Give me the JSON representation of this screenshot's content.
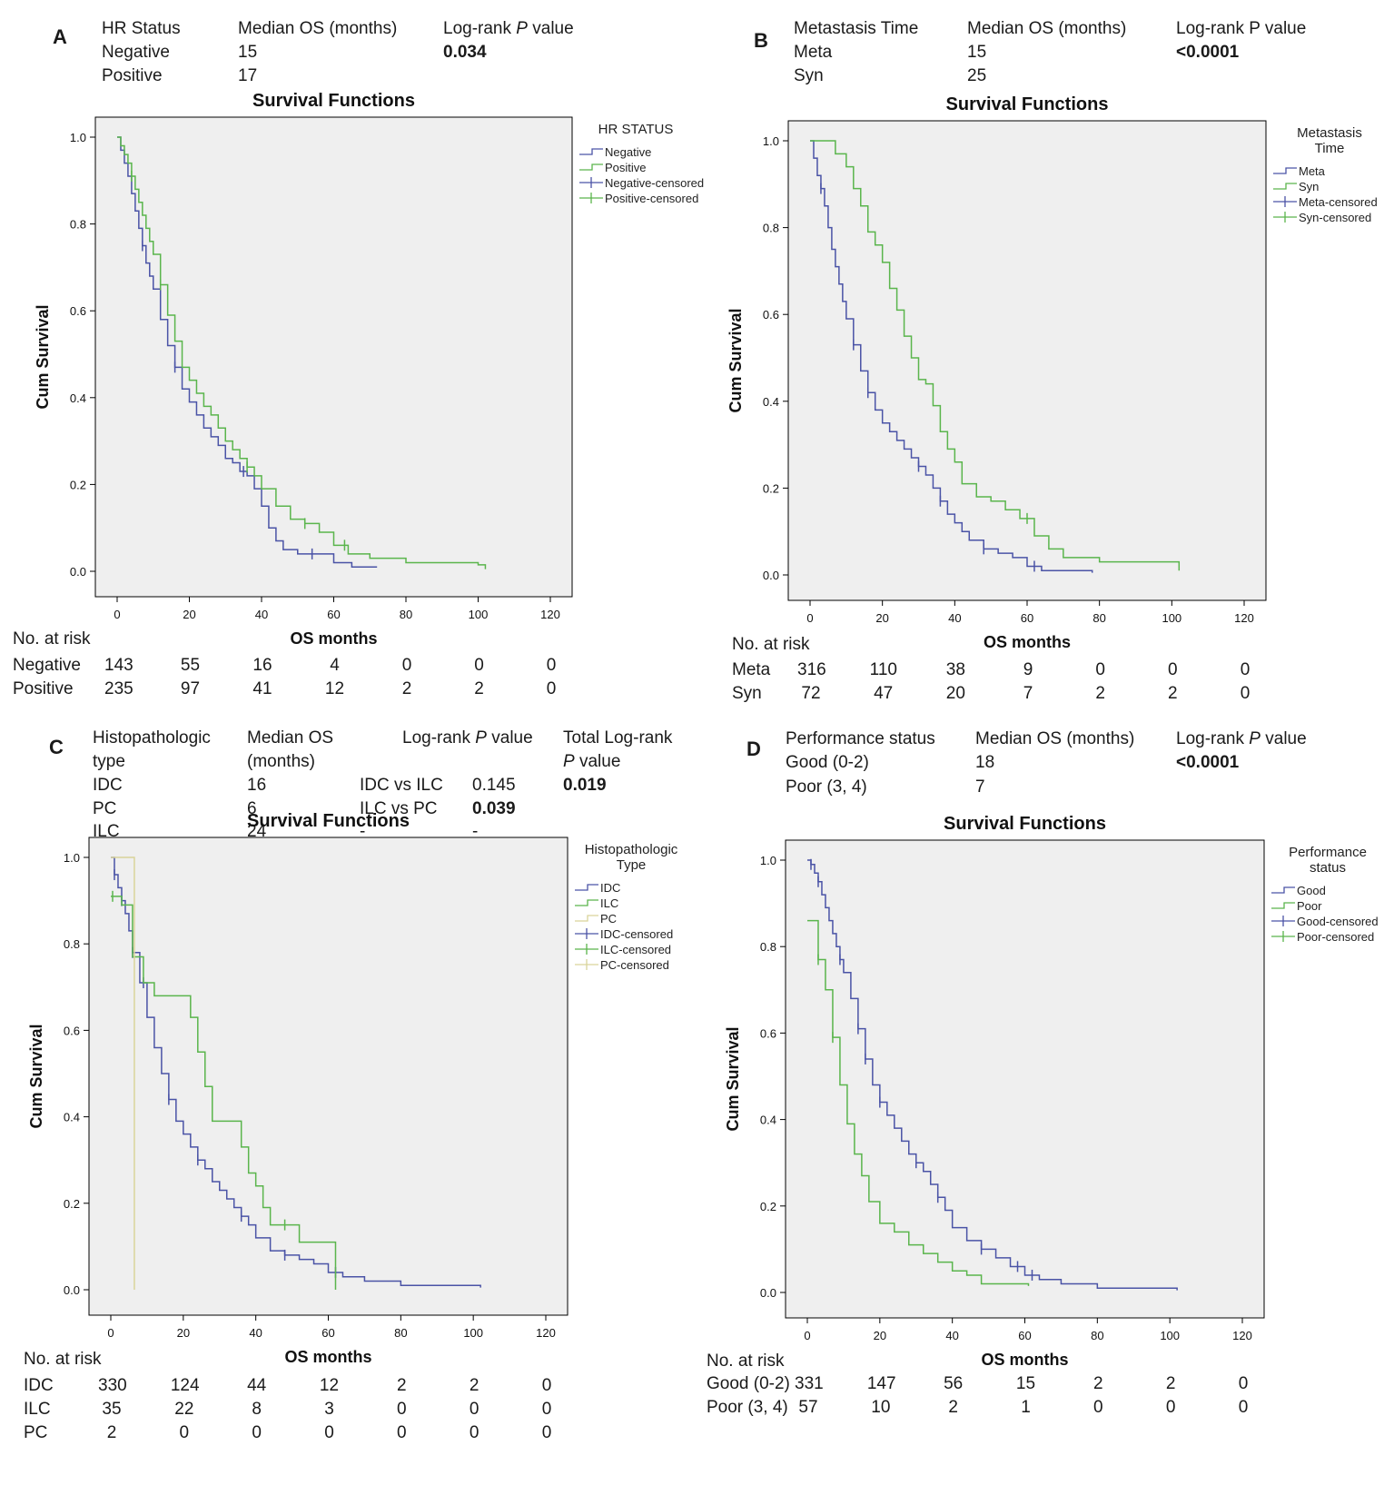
{
  "panels": [
    {
      "letter": "A",
      "header": {
        "cols": [
          "HR Status",
          "Median OS (months)",
          "Log-rank P value"
        ],
        "rows": [
          [
            "Negative",
            "15",
            "0.034"
          ],
          [
            "Positive",
            "17",
            ""
          ]
        ]
      },
      "risk": {
        "title": "No. at risk",
        "rows": [
          {
            "label": "Negative",
            "values": [
              "143",
              "55",
              "16",
              "4",
              "0",
              "0",
              "0"
            ]
          },
          {
            "label": "Positive",
            "values": [
              "235",
              "97",
              "41",
              "12",
              "2",
              "2",
              "0"
            ]
          }
        ]
      }
    },
    {
      "letter": "B",
      "header": {
        "cols": [
          "Metastasis Time",
          "Median OS (months)",
          "Log-rank P value"
        ],
        "rows": [
          [
            "Meta",
            "15",
            "<0.0001"
          ],
          [
            "Syn",
            "25",
            ""
          ]
        ]
      },
      "risk": {
        "title": "No. at risk",
        "rows": [
          {
            "label": "Meta",
            "values": [
              "316",
              "110",
              "38",
              "9",
              "0",
              "0",
              "0"
            ]
          },
          {
            "label": "Syn",
            "values": [
              "72",
              "47",
              "20",
              "7",
              "2",
              "2",
              "0"
            ]
          }
        ]
      }
    },
    {
      "letter": "C",
      "header": {
        "col1": [
          "Histopathologic",
          "type"
        ],
        "col2": [
          "Median OS",
          "(months)"
        ],
        "col3": "Log-rank P value",
        "col4": [
          "Total Log-rank",
          "P value"
        ],
        "rows": [
          [
            "IDC",
            "16",
            "IDC vs ILC",
            "0.145",
            "0.019"
          ],
          [
            "PC",
            "6",
            "ILC vs PC",
            "0.039",
            ""
          ],
          [
            "ILC",
            "24",
            "-",
            "-",
            ""
          ]
        ]
      },
      "risk": {
        "title": "No. at risk",
        "rows": [
          {
            "label": "IDC",
            "values": [
              "330",
              "124",
              "44",
              "12",
              "2",
              "2",
              "0"
            ]
          },
          {
            "label": "ILC",
            "values": [
              "35",
              "22",
              "8",
              "3",
              "0",
              "0",
              "0"
            ]
          },
          {
            "label": "PC",
            "values": [
              "2",
              "0",
              "0",
              "0",
              "0",
              "0",
              "0"
            ]
          }
        ]
      }
    },
    {
      "letter": "D",
      "header": {
        "cols": [
          "Performance status",
          "Median OS (months)",
          "Log-rank P value"
        ],
        "rows": [
          [
            "Good (0-2)",
            "18",
            "<0.0001"
          ],
          [
            "Poor (3, 4)",
            "7",
            ""
          ]
        ]
      },
      "risk": {
        "title": "No. at risk",
        "rows": [
          {
            "label": "Good (0-2)",
            "values": [
              "331",
              "147",
              "56",
              "15",
              "2",
              "2",
              "0"
            ]
          },
          {
            "label": "Poor (3, 4)",
            "values": [
              "57",
              "10",
              "2",
              "1",
              "0",
              "0",
              "0"
            ]
          }
        ]
      }
    }
  ],
  "colors": {
    "blue": "#4a53a6",
    "green": "#5ab54c",
    "yellow": "#d9d49a",
    "plot_bg": "#efefef"
  },
  "chart_data": [
    {
      "type": "line",
      "title": "Survival Functions",
      "xlabel": "OS months",
      "ylabel": "Cum Survival",
      "xlim": [
        0,
        120
      ],
      "ylim": [
        0,
        1
      ],
      "xticks": [
        0,
        20,
        40,
        60,
        80,
        100,
        120
      ],
      "yticks": [
        0.0,
        0.2,
        0.4,
        0.6,
        0.8,
        1.0
      ],
      "legend_title": [
        "HR STATUS"
      ],
      "legend": [
        "Negative",
        "Positive",
        "Negative-censored",
        "Positive-censored"
      ],
      "series": [
        {
          "name": "Negative",
          "color": "blue",
          "x": [
            0,
            1,
            2,
            3,
            4,
            5,
            6,
            7,
            8,
            9,
            10,
            12,
            14,
            16,
            18,
            20,
            22,
            24,
            26,
            28,
            30,
            32,
            34,
            36,
            38,
            40,
            42,
            44,
            46,
            50,
            55,
            60,
            65,
            72
          ],
          "y": [
            1.0,
            0.97,
            0.94,
            0.91,
            0.87,
            0.83,
            0.79,
            0.75,
            0.71,
            0.68,
            0.65,
            0.58,
            0.52,
            0.47,
            0.42,
            0.39,
            0.36,
            0.33,
            0.31,
            0.29,
            0.26,
            0.25,
            0.23,
            0.22,
            0.19,
            0.15,
            0.1,
            0.07,
            0.05,
            0.04,
            0.04,
            0.02,
            0.01,
            0.01
          ],
          "censored_x": [
            7,
            16,
            35,
            54
          ]
        },
        {
          "name": "Positive",
          "color": "green",
          "x": [
            0,
            1,
            2,
            3,
            4,
            5,
            6,
            7,
            8,
            9,
            10,
            12,
            14,
            16,
            18,
            20,
            22,
            24,
            26,
            28,
            30,
            32,
            34,
            36,
            38,
            40,
            44,
            48,
            52,
            56,
            60,
            64,
            70,
            76,
            80,
            90,
            100,
            102
          ],
          "y": [
            1.0,
            0.98,
            0.96,
            0.94,
            0.91,
            0.88,
            0.85,
            0.82,
            0.79,
            0.76,
            0.73,
            0.66,
            0.59,
            0.53,
            0.47,
            0.44,
            0.41,
            0.38,
            0.36,
            0.33,
            0.3,
            0.28,
            0.26,
            0.24,
            0.22,
            0.19,
            0.15,
            0.12,
            0.11,
            0.09,
            0.06,
            0.04,
            0.03,
            0.03,
            0.02,
            0.02,
            0.015,
            0.005
          ],
          "censored_x": [
            4,
            12,
            36,
            52,
            63
          ]
        }
      ]
    },
    {
      "type": "line",
      "title": "Survival Functions",
      "xlabel": "OS months",
      "ylabel": "Cum Survival",
      "xlim": [
        0,
        120
      ],
      "ylim": [
        0,
        1
      ],
      "xticks": [
        0,
        20,
        40,
        60,
        80,
        100,
        120
      ],
      "yticks": [
        0.0,
        0.2,
        0.4,
        0.6,
        0.8,
        1.0
      ],
      "legend_title": [
        "Metastasis",
        "Time"
      ],
      "legend": [
        "Meta",
        "Syn",
        "Meta-censored",
        "Syn-censored"
      ],
      "series": [
        {
          "name": "Meta",
          "color": "blue",
          "x": [
            0,
            1,
            2,
            3,
            4,
            5,
            6,
            7,
            8,
            9,
            10,
            12,
            14,
            16,
            18,
            20,
            22,
            24,
            26,
            28,
            30,
            32,
            34,
            36,
            38,
            40,
            42,
            44,
            48,
            52,
            56,
            60,
            64,
            70,
            78
          ],
          "y": [
            1.0,
            0.96,
            0.92,
            0.89,
            0.85,
            0.8,
            0.75,
            0.71,
            0.67,
            0.63,
            0.59,
            0.53,
            0.47,
            0.42,
            0.38,
            0.35,
            0.33,
            0.31,
            0.29,
            0.27,
            0.25,
            0.23,
            0.2,
            0.17,
            0.14,
            0.12,
            0.1,
            0.08,
            0.06,
            0.05,
            0.04,
            0.02,
            0.01,
            0.01,
            0.005
          ],
          "censored_x": [
            3,
            12,
            16,
            30,
            36,
            48,
            62
          ]
        },
        {
          "name": "Syn",
          "color": "green",
          "x": [
            0,
            2,
            5,
            7,
            10,
            12,
            14,
            16,
            18,
            20,
            22,
            24,
            26,
            28,
            30,
            32,
            34,
            36,
            38,
            40,
            42,
            46,
            50,
            54,
            58,
            62,
            66,
            70,
            80,
            90,
            102
          ],
          "y": [
            1.0,
            1.0,
            1.0,
            0.97,
            0.94,
            0.89,
            0.85,
            0.79,
            0.76,
            0.72,
            0.66,
            0.61,
            0.55,
            0.5,
            0.45,
            0.44,
            0.39,
            0.33,
            0.29,
            0.26,
            0.21,
            0.18,
            0.17,
            0.15,
            0.13,
            0.09,
            0.06,
            0.04,
            0.03,
            0.03,
            0.01
          ],
          "censored_x": [
            60
          ]
        }
      ]
    },
    {
      "type": "line",
      "title": "Survival Functions",
      "xlabel": "OS months",
      "ylabel": "Cum Survival",
      "xlim": [
        0,
        120
      ],
      "ylim": [
        0,
        1
      ],
      "xticks": [
        0,
        20,
        40,
        60,
        80,
        100,
        120
      ],
      "yticks": [
        0.0,
        0.2,
        0.4,
        0.6,
        0.8,
        1.0
      ],
      "legend_title": [
        "Histopathologic",
        "Type"
      ],
      "legend": [
        "IDC",
        "ILC",
        "PC",
        "IDC-censored",
        "ILC-censored",
        "PC-censored"
      ],
      "series": [
        {
          "name": "IDC",
          "color": "blue",
          "x": [
            0,
            1,
            2,
            3,
            4,
            5,
            6,
            8,
            10,
            12,
            14,
            16,
            18,
            20,
            22,
            24,
            26,
            28,
            30,
            32,
            34,
            36,
            38,
            40,
            44,
            48,
            52,
            56,
            60,
            64,
            70,
            80,
            90,
            102
          ],
          "y": [
            1.0,
            0.96,
            0.93,
            0.9,
            0.87,
            0.83,
            0.78,
            0.71,
            0.63,
            0.56,
            0.5,
            0.44,
            0.39,
            0.36,
            0.33,
            0.3,
            0.28,
            0.25,
            0.23,
            0.21,
            0.19,
            0.17,
            0.15,
            0.12,
            0.09,
            0.08,
            0.07,
            0.06,
            0.04,
            0.03,
            0.02,
            0.01,
            0.01,
            0.005
          ],
          "censored_x": [
            1,
            3,
            6,
            9,
            16,
            24,
            36,
            48,
            62
          ]
        },
        {
          "name": "ILC",
          "color": "green",
          "x": [
            0,
            1,
            3,
            6,
            9,
            12,
            16,
            20,
            22,
            24,
            26,
            28,
            32,
            36,
            38,
            40,
            42,
            44,
            48,
            52,
            56,
            60,
            62
          ],
          "y": [
            0.91,
            0.91,
            0.89,
            0.77,
            0.71,
            0.68,
            0.68,
            0.68,
            0.63,
            0.55,
            0.47,
            0.39,
            0.39,
            0.33,
            0.27,
            0.24,
            0.19,
            0.15,
            0.15,
            0.11,
            0.11,
            0.11,
            0.0
          ],
          "censored_x": [
            0.5,
            48
          ]
        },
        {
          "name": "PC",
          "color": "yellow",
          "x": [
            0,
            5,
            6.5
          ],
          "y": [
            1.0,
            1.0,
            0.5
          ],
          "drop_to": 0.0,
          "censored_x": []
        }
      ]
    },
    {
      "type": "line",
      "title": "Survival Functions",
      "xlabel": "OS months",
      "ylabel": "Cum Survival",
      "xlim": [
        0,
        120
      ],
      "ylim": [
        0,
        1
      ],
      "xticks": [
        0,
        20,
        40,
        60,
        80,
        100,
        120
      ],
      "yticks": [
        0.0,
        0.2,
        0.4,
        0.6,
        0.8,
        1.0
      ],
      "legend_title": [
        "Performance",
        "status"
      ],
      "legend": [
        "Good",
        "Poor",
        "Good-censored",
        "Poor-censored"
      ],
      "series": [
        {
          "name": "Good",
          "color": "blue",
          "x": [
            0,
            1,
            2,
            3,
            4,
            5,
            6,
            7,
            8,
            9,
            10,
            12,
            14,
            16,
            18,
            20,
            22,
            24,
            26,
            28,
            30,
            32,
            34,
            36,
            38,
            40,
            44,
            48,
            52,
            56,
            60,
            64,
            70,
            80,
            90,
            102
          ],
          "y": [
            1.0,
            0.99,
            0.97,
            0.95,
            0.92,
            0.89,
            0.86,
            0.83,
            0.8,
            0.77,
            0.74,
            0.68,
            0.61,
            0.54,
            0.48,
            0.44,
            0.41,
            0.38,
            0.35,
            0.32,
            0.3,
            0.28,
            0.25,
            0.22,
            0.19,
            0.15,
            0.12,
            0.1,
            0.08,
            0.06,
            0.04,
            0.03,
            0.02,
            0.01,
            0.01,
            0.005
          ],
          "censored_x": [
            1,
            3,
            9,
            14,
            16,
            20,
            30,
            36,
            48,
            58,
            62
          ]
        },
        {
          "name": "Poor",
          "color": "green",
          "x": [
            0,
            1,
            3,
            5,
            7,
            9,
            11,
            13,
            15,
            17,
            20,
            24,
            28,
            32,
            36,
            40,
            44,
            48,
            52,
            61
          ],
          "y": [
            0.86,
            0.86,
            0.77,
            0.7,
            0.59,
            0.48,
            0.39,
            0.32,
            0.27,
            0.21,
            0.16,
            0.14,
            0.11,
            0.09,
            0.07,
            0.05,
            0.04,
            0.02,
            0.02,
            0.015
          ],
          "censored_x": [
            3,
            7
          ]
        }
      ]
    }
  ]
}
